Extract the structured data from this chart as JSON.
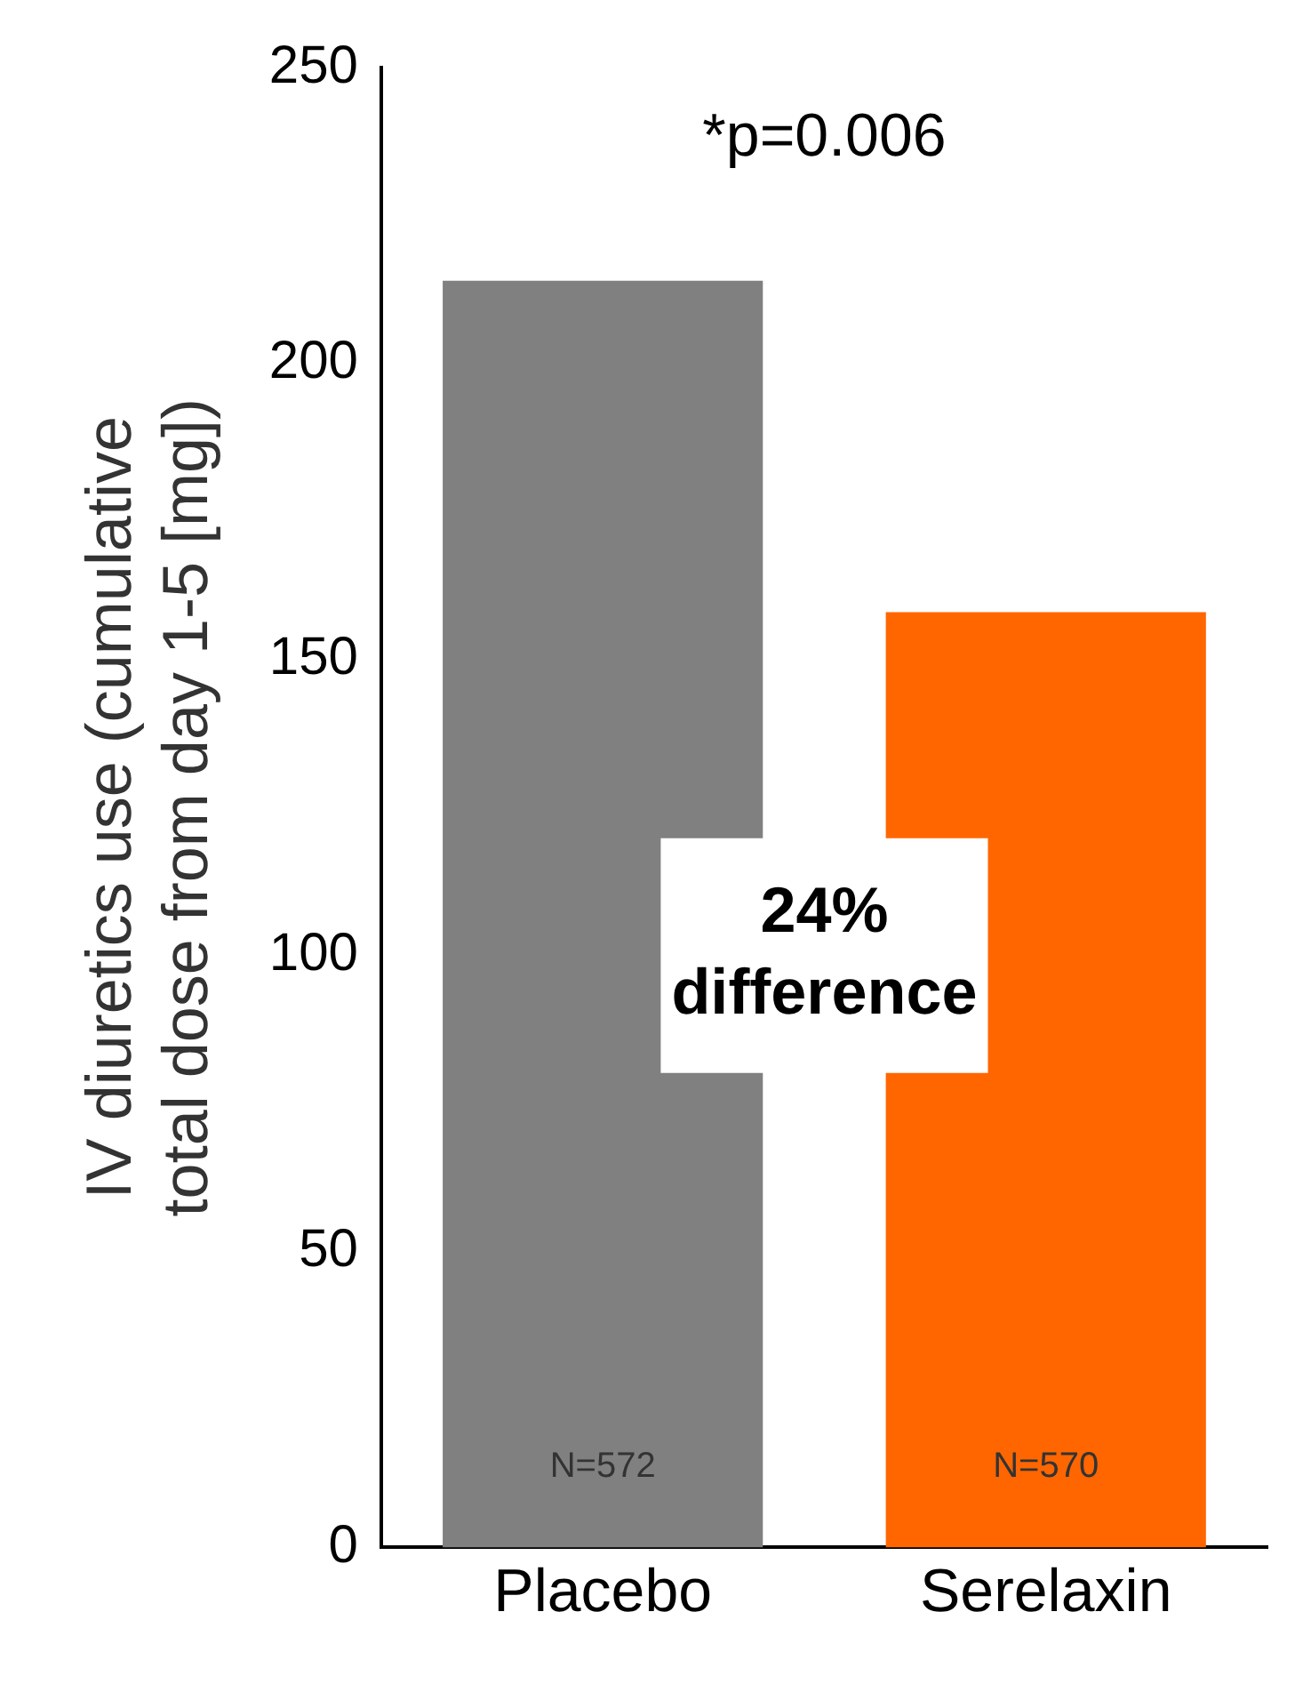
{
  "chart_data": {
    "type": "bar",
    "ylabel": "IV diuretics use (cumulative total dose from day 1-5 [mg])",
    "categories": [
      "Placebo",
      "Serelaxin"
    ],
    "values": [
      214,
      158
    ],
    "colors": [
      "#808080",
      "#ff6600"
    ],
    "ylim": [
      0,
      250
    ],
    "yticks": [
      0,
      50,
      100,
      150,
      200,
      250
    ],
    "grid": false,
    "legend": false,
    "annotations": [
      "*p=0.006",
      "24% difference",
      "N=572",
      "N=570"
    ]
  }
}
